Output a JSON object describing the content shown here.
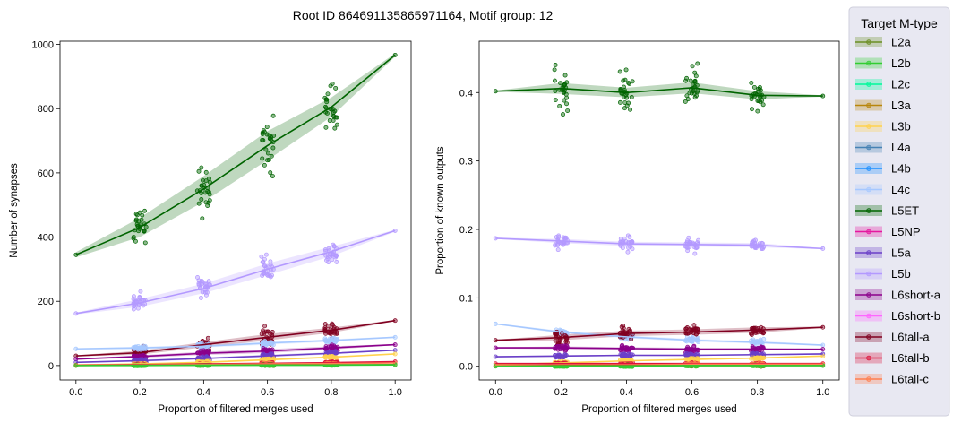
{
  "chart_data": {
    "title": "Root ID 864691135865971164, Motif group: 12",
    "legend": {
      "title": "Target M-type",
      "placement": "outside-right",
      "entries": [
        "L2a",
        "L2b",
        "L2c",
        "L3a",
        "L3b",
        "L4a",
        "L4b",
        "L4c",
        "L5ET",
        "L5NP",
        "L5a",
        "L5b",
        "L6short-a",
        "L6short-b",
        "L6tall-a",
        "L6tall-b",
        "L6tall-c"
      ]
    },
    "colors": {
      "L2a": "#6b8e23",
      "L2b": "#32cd32",
      "L2c": "#00fa9a",
      "L3a": "#b8860b",
      "L3b": "#ffd24d",
      "L4a": "#4682b4",
      "L4b": "#1e90ff",
      "L4c": "#a6c8ff",
      "L5ET": "#006400",
      "L5NP": "#e5179f",
      "L5a": "#6a3fc8",
      "L5b": "#b399ff",
      "L6short-a": "#8b008b",
      "L6short-b": "#ff66ff",
      "L6tall-a": "#800020",
      "L6tall-b": "#dc143c",
      "L6tall-c": "#ff7f50"
    },
    "charts": [
      {
        "type": "line",
        "xlabel": "Proportion of filtered merges used",
        "ylabel": "Number of synapses",
        "x": [
          0.0,
          0.2,
          0.4,
          0.6,
          0.8,
          1.0
        ],
        "xlim": [
          -0.05,
          1.05
        ],
        "ylim": [
          -45,
          1010
        ],
        "xticks": [
          "0.0",
          "0.2",
          "0.4",
          "0.6",
          "0.8",
          "1.0"
        ],
        "yticks": [
          "0",
          "200",
          "400",
          "600",
          "800",
          "1000"
        ],
        "grid": false,
        "series": [
          {
            "name": "L5ET",
            "mean": [
              345,
              430,
              550,
              685,
              805,
              967
            ],
            "ci": [
              8,
              30,
              40,
              45,
              30,
              5
            ],
            "spread": [
              0,
              100,
              120,
              140,
              110,
              0
            ]
          },
          {
            "name": "L5b",
            "mean": [
              162,
              195,
              240,
              300,
              355,
              420
            ],
            "ci": [
              3,
              12,
              15,
              18,
              15,
              3
            ],
            "spread": [
              0,
              40,
              45,
              60,
              45,
              0
            ]
          },
          {
            "name": "L6tall-a",
            "mean": [
              30,
              40,
              65,
              88,
              110,
              140
            ],
            "ci": [
              2,
              6,
              8,
              10,
              8,
              2
            ],
            "spread": [
              0,
              30,
              35,
              40,
              30,
              0
            ]
          },
          {
            "name": "L4c",
            "mean": [
              52,
              55,
              60,
              70,
              78,
              88
            ],
            "ci": [
              2,
              4,
              4,
              5,
              4,
              2
            ],
            "spread": [
              0,
              10,
              12,
              14,
              12,
              0
            ]
          },
          {
            "name": "L6short-a",
            "mean": [
              20,
              28,
              38,
              45,
              55,
              65
            ],
            "ci": [
              2,
              4,
              5,
              6,
              5,
              2
            ],
            "spread": [
              0,
              12,
              14,
              16,
              14,
              0
            ]
          },
          {
            "name": "L5a",
            "mean": [
              10,
              15,
              22,
              30,
              38,
              48
            ],
            "ci": [
              1,
              3,
              3,
              4,
              3,
              1
            ],
            "spread": [
              0,
              8,
              10,
              12,
              10,
              0
            ]
          },
          {
            "name": "L3b",
            "mean": [
              2,
              5,
              10,
              18,
              26,
              36
            ],
            "ci": [
              1,
              2,
              3,
              3,
              3,
              1
            ],
            "spread": [
              0,
              5,
              6,
              8,
              6,
              0
            ]
          },
          {
            "name": "L6tall-b",
            "mean": [
              1,
              3,
              5,
              7,
              9,
              12
            ],
            "ci": [
              1,
              1,
              2,
              2,
              2,
              1
            ],
            "spread": [
              0,
              4,
              5,
              5,
              5,
              0
            ]
          },
          {
            "name": "L6tall-c",
            "mean": [
              0,
              2,
              3,
              5,
              6,
              8
            ],
            "ci": [
              1,
              1,
              1,
              2,
              1,
              1
            ],
            "spread": [
              0,
              3,
              4,
              5,
              4,
              0
            ]
          },
          {
            "name": "L2a",
            "mean": [
              0,
              1,
              1,
              2,
              2,
              3
            ],
            "ci": [
              0,
              1,
              1,
              1,
              1,
              0
            ],
            "spread": [
              0,
              3,
              3,
              4,
              3,
              0
            ]
          },
          {
            "name": "L2b",
            "mean": [
              0,
              0,
              1,
              1,
              1,
              2
            ],
            "ci": [
              0,
              1,
              1,
              1,
              1,
              0
            ],
            "spread": [
              0,
              2,
              2,
              2,
              2,
              0
            ]
          }
        ]
      },
      {
        "type": "line",
        "xlabel": "Proportion of filtered merges used",
        "ylabel": "Proportion of known outputs",
        "x": [
          0.0,
          0.2,
          0.4,
          0.6,
          0.8,
          1.0
        ],
        "xlim": [
          -0.05,
          1.05
        ],
        "ylim": [
          -0.02,
          0.475
        ],
        "xticks": [
          "0.0",
          "0.2",
          "0.4",
          "0.6",
          "0.8",
          "1.0"
        ],
        "yticks": [
          "0.0",
          "0.1",
          "0.2",
          "0.3",
          "0.4"
        ],
        "grid": false,
        "series": [
          {
            "name": "L5ET",
            "mean": [
              0.402,
              0.406,
              0.4,
              0.407,
              0.396,
              0.395
            ],
            "ci": [
              0.001,
              0.008,
              0.007,
              0.008,
              0.006,
              0.001
            ],
            "spread": [
              0,
              0.05,
              0.04,
              0.05,
              0.03,
              0
            ]
          },
          {
            "name": "L5b",
            "mean": [
              0.187,
              0.183,
              0.179,
              0.178,
              0.177,
              0.172
            ],
            "ci": [
              0.001,
              0.003,
              0.003,
              0.003,
              0.003,
              0.001
            ],
            "spread": [
              0,
              0.015,
              0.015,
              0.015,
              0.012,
              0
            ]
          },
          {
            "name": "L4c",
            "mean": [
              0.062,
              0.05,
              0.043,
              0.038,
              0.035,
              0.031
            ],
            "ci": [
              0.001,
              0.002,
              0.002,
              0.002,
              0.002,
              0.001
            ],
            "spread": [
              0,
              0.006,
              0.006,
              0.006,
              0.006,
              0
            ]
          },
          {
            "name": "L6tall-a",
            "mean": [
              0.038,
              0.042,
              0.048,
              0.05,
              0.053,
              0.057
            ],
            "ci": [
              0.001,
              0.004,
              0.004,
              0.004,
              0.004,
              0.001
            ],
            "spread": [
              0,
              0.015,
              0.015,
              0.015,
              0.012,
              0
            ]
          },
          {
            "name": "L6short-a",
            "mean": [
              0.027,
              0.027,
              0.026,
              0.025,
              0.025,
              0.025
            ],
            "ci": [
              0.001,
              0.002,
              0.002,
              0.002,
              0.002,
              0.001
            ],
            "spread": [
              0,
              0.006,
              0.006,
              0.006,
              0.006,
              0
            ]
          },
          {
            "name": "L5a",
            "mean": [
              0.014,
              0.015,
              0.016,
              0.016,
              0.017,
              0.018
            ],
            "ci": [
              0.001,
              0.001,
              0.001,
              0.001,
              0.001,
              0.001
            ],
            "spread": [
              0,
              0.004,
              0.004,
              0.004,
              0.004,
              0
            ]
          },
          {
            "name": "L3b",
            "mean": [
              0.002,
              0.005,
              0.008,
              0.01,
              0.012,
              0.015
            ],
            "ci": [
              0.001,
              0.001,
              0.001,
              0.001,
              0.001,
              0.001
            ],
            "spread": [
              0,
              0.003,
              0.003,
              0.003,
              0.003,
              0
            ]
          },
          {
            "name": "L6tall-b",
            "mean": [
              0.004,
              0.004,
              0.004,
              0.004,
              0.004,
              0.004
            ],
            "ci": [
              0.001,
              0.001,
              0.001,
              0.001,
              0.001,
              0.001
            ],
            "spread": [
              0,
              0.002,
              0.002,
              0.002,
              0.002,
              0
            ]
          },
          {
            "name": "L6tall-c",
            "mean": [
              0.001,
              0.002,
              0.002,
              0.003,
              0.003,
              0.003
            ],
            "ci": [
              0.001,
              0.001,
              0.001,
              0.001,
              0.001,
              0.001
            ],
            "spread": [
              0,
              0.002,
              0.002,
              0.002,
              0.002,
              0
            ]
          },
          {
            "name": "L2a",
            "mean": [
              0.0,
              0.001,
              0.001,
              0.001,
              0.001,
              0.001
            ],
            "ci": [
              0,
              0.001,
              0.001,
              0.001,
              0.001,
              0
            ],
            "spread": [
              0,
              0.002,
              0.002,
              0.002,
              0.002,
              0
            ]
          },
          {
            "name": "L2b",
            "mean": [
              0.0,
              0.0,
              0.0,
              0.001,
              0.001,
              0.001
            ],
            "ci": [
              0,
              0.001,
              0.001,
              0.001,
              0.001,
              0
            ],
            "spread": [
              0,
              0.001,
              0.001,
              0.001,
              0.001,
              0
            ]
          }
        ]
      }
    ]
  }
}
